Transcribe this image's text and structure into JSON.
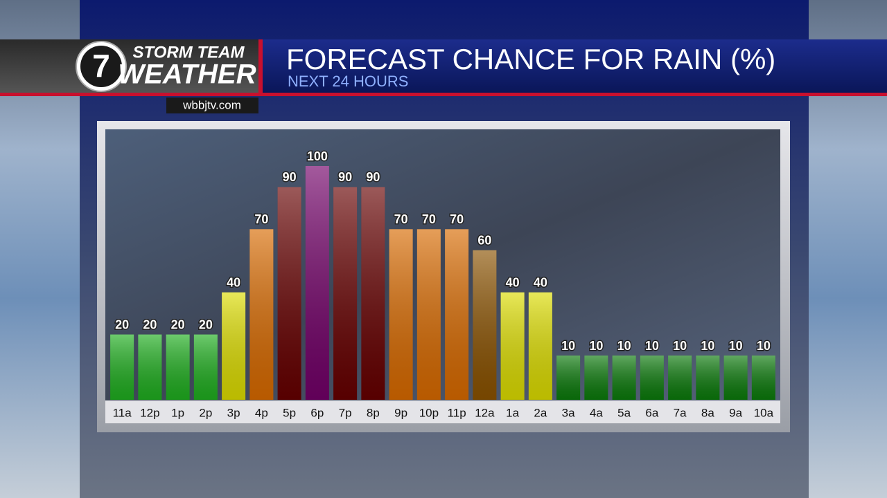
{
  "chart_data": {
    "type": "bar",
    "title": "FORECAST CHANCE FOR RAIN (%)",
    "subtitle": "NEXT 24 HOURS",
    "brand_top": "STORM TEAM",
    "brand_bottom": "WEATHER",
    "brand_number": "7",
    "website": "wbbjtv.com",
    "categories": [
      "11a",
      "12p",
      "1p",
      "2p",
      "3p",
      "4p",
      "5p",
      "6p",
      "7p",
      "8p",
      "9p",
      "10p",
      "11p",
      "12a",
      "1a",
      "2a",
      "3a",
      "4a",
      "5a",
      "6a",
      "7a",
      "8a",
      "9a",
      "10a"
    ],
    "values": [
      20,
      20,
      20,
      20,
      40,
      70,
      90,
      100,
      90,
      90,
      70,
      70,
      70,
      60,
      40,
      40,
      10,
      10,
      10,
      10,
      10,
      10,
      10,
      10
    ],
    "colors": [
      "#1fae1f",
      "#1fae1f",
      "#1fae1f",
      "#1fae1f",
      "#dcdc00",
      "#d86a00",
      "#660000",
      "#720068",
      "#660000",
      "#660000",
      "#d86a00",
      "#d86a00",
      "#d86a00",
      "#8a5200",
      "#dcdc00",
      "#dcdc00",
      "#0b7a0b",
      "#0b7a0b",
      "#0b7a0b",
      "#0b7a0b",
      "#0b7a0b",
      "#0b7a0b",
      "#0b7a0b",
      "#0b7a0b"
    ],
    "ylim": [
      -11,
      100
    ]
  }
}
